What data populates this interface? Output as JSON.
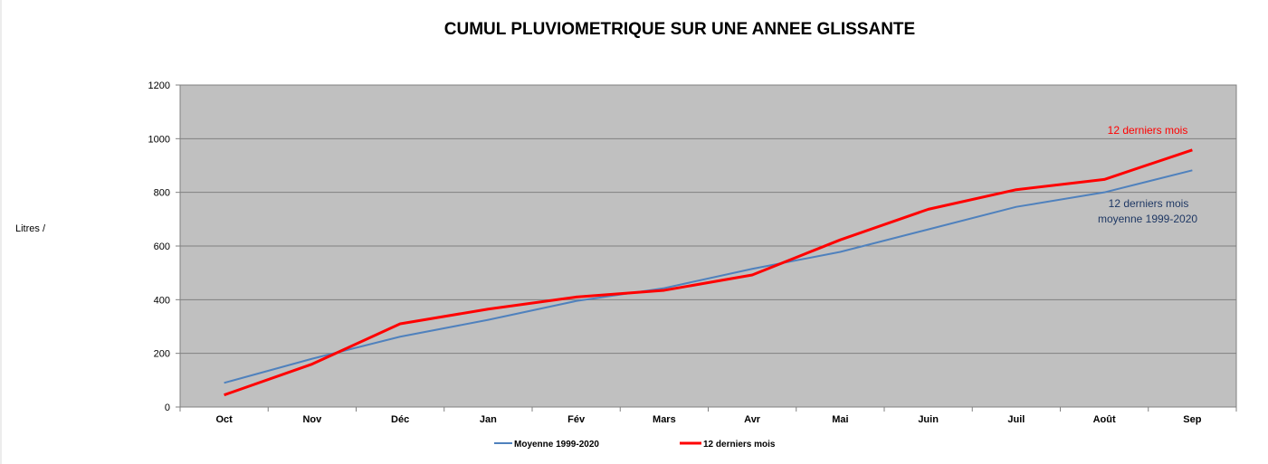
{
  "chart_data": {
    "type": "line",
    "title": "CUMUL PLUVIOMETRIQUE SUR UNE ANNEE GLISSANTE",
    "ylabel": "Litres /",
    "xlabel": "",
    "categories": [
      "Oct",
      "Nov",
      "Déc",
      "Jan",
      "Fév",
      "Mars",
      "Avr",
      "Mai",
      "Juin",
      "Juil",
      "Août",
      "Sep"
    ],
    "ylim": [
      0,
      1200
    ],
    "yticks": [
      0,
      200,
      400,
      600,
      800,
      1000,
      1200
    ],
    "grid": true,
    "plot_background": "#c0c0c0",
    "legend_position": "bottom",
    "series": [
      {
        "name": "Moyenne 1999-2020",
        "color": "#4f81bd",
        "values": [
          90,
          180,
          262,
          325,
          395,
          443,
          515,
          578,
          662,
          746,
          800,
          882
        ]
      },
      {
        "name": "12 derniers mois",
        "color": "#ff0000",
        "values": [
          45,
          160,
          310,
          365,
          410,
          435,
          492,
          623,
          737,
          810,
          848,
          958
        ]
      }
    ],
    "annotations": [
      {
        "text": "12 derniers mois",
        "color": "#ff0000"
      },
      {
        "text": "12 derniers mois",
        "color": "#1f3864"
      },
      {
        "text": "moyenne 1999-2020",
        "color": "#1f3864"
      }
    ]
  }
}
